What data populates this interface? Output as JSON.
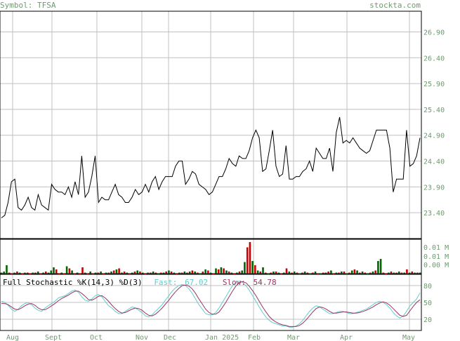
{
  "header": {
    "symbol": "Symbol: TFSA",
    "site": "stockta.com"
  },
  "colors": {
    "price_line": "#000000",
    "grid": "#c0c0c0",
    "vol_up": "#006600",
    "vol_down": "#cc0000",
    "fast": "#66cccc",
    "slow": "#993366",
    "text": "#6f9a6f"
  },
  "stochastic": {
    "label": "Full Stochastic %K(14,3) %D(3)",
    "fast_label": "Fast:",
    "fast_value": "67.02",
    "slow_label": "Slow:",
    "slow_value": "54.78"
  },
  "chart_data": [
    {
      "type": "line",
      "title": "Price",
      "yticks": [
        "26.90",
        "26.40",
        "25.90",
        "25.40",
        "24.90",
        "24.40",
        "23.90",
        "23.40"
      ],
      "ylim": [
        22.9,
        27.3
      ],
      "xticks": [
        "Aug",
        "Sept",
        "Oct",
        "Nov",
        "Dec",
        "Jan 2025",
        "Feb",
        "Mar",
        "Apr",
        "May"
      ],
      "values": [
        23.3,
        23.35,
        23.6,
        24.0,
        24.05,
        23.5,
        23.45,
        23.55,
        23.7,
        23.5,
        23.45,
        23.75,
        23.55,
        23.5,
        23.45,
        23.95,
        23.85,
        23.8,
        23.8,
        23.75,
        23.9,
        23.7,
        24.0,
        23.75,
        24.5,
        23.7,
        23.8,
        24.1,
        24.5,
        23.6,
        23.7,
        23.65,
        23.65,
        23.8,
        23.95,
        23.75,
        23.7,
        23.6,
        23.6,
        23.7,
        23.85,
        23.75,
        23.8,
        23.95,
        23.8,
        24.0,
        24.1,
        23.85,
        24.0,
        24.1,
        24.1,
        24.1,
        24.3,
        24.4,
        24.4,
        23.95,
        24.05,
        24.2,
        24.15,
        23.95,
        23.9,
        23.85,
        23.75,
        23.8,
        23.95,
        24.1,
        24.1,
        24.25,
        24.45,
        24.35,
        24.3,
        24.5,
        24.45,
        24.45,
        24.6,
        24.85,
        25.0,
        24.85,
        24.2,
        24.25,
        24.6,
        25.0,
        24.3,
        24.1,
        24.15,
        24.7,
        24.05,
        24.05,
        24.1,
        24.1,
        24.2,
        24.25,
        24.4,
        24.2,
        24.65,
        24.55,
        24.45,
        24.45,
        24.65,
        24.2,
        24.95,
        25.25,
        24.75,
        24.8,
        24.75,
        24.85,
        24.75,
        24.65,
        24.6,
        24.55,
        24.6,
        24.8,
        25.0,
        25.0,
        25.0,
        25.0,
        24.65,
        23.8,
        24.05,
        24.05,
        24.05,
        25.0,
        24.3,
        24.35,
        24.5,
        24.85
      ]
    },
    {
      "type": "bar",
      "title": "Volume",
      "yticks": [
        "0.01 M",
        "0.01 M",
        "0.00 M"
      ],
      "values": [
        1,
        2,
        8,
        1,
        0,
        1,
        2,
        1,
        0,
        1,
        1,
        0,
        1,
        1,
        2,
        0,
        1,
        2,
        1,
        3,
        6,
        4,
        0,
        1,
        0,
        7,
        5,
        3,
        0,
        1,
        0,
        6,
        1,
        0,
        2,
        0,
        1,
        1,
        2,
        0,
        1,
        1,
        2,
        3,
        4,
        5,
        1,
        2,
        1,
        0,
        1,
        2,
        3,
        2,
        1,
        0,
        1,
        1,
        2,
        1,
        0,
        1,
        1,
        2,
        3,
        2,
        1,
        0,
        1,
        1,
        2,
        1,
        2,
        3,
        2,
        1,
        0,
        2,
        4,
        3,
        1,
        0,
        5,
        4,
        6,
        5,
        3,
        2,
        1,
        0,
        1,
        2,
        3,
        11,
        25,
        30,
        12,
        8,
        3,
        2,
        6,
        1,
        0,
        1,
        2,
        2,
        1,
        0,
        1,
        5,
        2,
        1,
        2,
        1,
        0,
        1,
        2,
        1,
        0,
        1,
        2,
        0,
        0,
        1,
        1,
        2,
        3,
        0,
        1,
        1,
        2,
        2,
        0,
        1,
        3,
        4,
        3,
        1,
        2,
        1,
        0,
        1,
        2,
        3,
        12,
        14,
        1,
        0,
        1,
        2,
        1,
        1,
        2,
        1,
        1,
        4,
        1,
        2,
        1,
        1,
        1
      ],
      "up": [
        1,
        1,
        1,
        0,
        0,
        1,
        0,
        1,
        0,
        1,
        0,
        0,
        1,
        0,
        1,
        0,
        1,
        0,
        1,
        1,
        1,
        0,
        0,
        1,
        0,
        1,
        0,
        1,
        0,
        1,
        0,
        0,
        1,
        0,
        1,
        0,
        1,
        0,
        1,
        0,
        1,
        0,
        1,
        0,
        1,
        0,
        1,
        0,
        1,
        0,
        1,
        0,
        1,
        0,
        1,
        0,
        1,
        0,
        1,
        0,
        1,
        0,
        1,
        0,
        1,
        0,
        1,
        0,
        1,
        0,
        1,
        0,
        1,
        0,
        1,
        0,
        1,
        0,
        1,
        0,
        1,
        0,
        1,
        0,
        1,
        0,
        1,
        0,
        1,
        0,
        1,
        0,
        1,
        1,
        0,
        0,
        1,
        0,
        1,
        0,
        1,
        0,
        1,
        0,
        1,
        0,
        1,
        0,
        1,
        0,
        1,
        0,
        1,
        0,
        1,
        0,
        1,
        0,
        1,
        0,
        1,
        0,
        1,
        0,
        1,
        0,
        1,
        0,
        1,
        0,
        1,
        0,
        1,
        0,
        1,
        0,
        1,
        0,
        1,
        0,
        1,
        0,
        1,
        0,
        1,
        1,
        0,
        0,
        1,
        0,
        1,
        0,
        1,
        0,
        1,
        0,
        1,
        0,
        1,
        0,
        1
      ]
    },
    {
      "type": "line",
      "title": "Full Stochastic",
      "yticks": [
        "80",
        "50",
        "20"
      ],
      "ylim": [
        0,
        100
      ],
      "series": [
        {
          "name": "Fast",
          "values": [
            52,
            50,
            45,
            38,
            34,
            38,
            44,
            48,
            50,
            46,
            40,
            36,
            34,
            40,
            44,
            48,
            52,
            58,
            60,
            62,
            66,
            70,
            72,
            68,
            60,
            54,
            52,
            56,
            62,
            64,
            60,
            52,
            44,
            40,
            34,
            30,
            30,
            34,
            38,
            42,
            40,
            36,
            32,
            26,
            24,
            28,
            34,
            40,
            46,
            54,
            62,
            70,
            76,
            80,
            82,
            80,
            74,
            66,
            56,
            46,
            38,
            30,
            28,
            28,
            32,
            40,
            50,
            60,
            70,
            80,
            86,
            88,
            86,
            80,
            72,
            62,
            52,
            42,
            32,
            24,
            18,
            14,
            12,
            10,
            8,
            8,
            6,
            6,
            8,
            12,
            18,
            26,
            34,
            40,
            44,
            42,
            38,
            34,
            30,
            30,
            32,
            34,
            34,
            32,
            30,
            30,
            32,
            34,
            36,
            38,
            42,
            46,
            50,
            52,
            50,
            46,
            40,
            32,
            26,
            22,
            26,
            34,
            44,
            50,
            56,
            67
          ]
        },
        {
          "name": "Slow",
          "values": [
            48,
            48,
            46,
            42,
            38,
            37,
            40,
            44,
            47,
            48,
            45,
            40,
            37,
            37,
            40,
            44,
            48,
            53,
            57,
            60,
            63,
            67,
            70,
            70,
            66,
            61,
            55,
            54,
            57,
            61,
            62,
            58,
            52,
            45,
            39,
            34,
            31,
            32,
            35,
            38,
            40,
            39,
            36,
            31,
            27,
            26,
            29,
            34,
            40,
            47,
            54,
            62,
            69,
            75,
            80,
            81,
            79,
            74,
            66,
            56,
            47,
            38,
            32,
            29,
            29,
            33,
            41,
            50,
            60,
            70,
            79,
            85,
            87,
            85,
            79,
            71,
            62,
            52,
            42,
            33,
            25,
            19,
            15,
            12,
            10,
            9,
            7,
            7,
            7,
            9,
            13,
            19,
            26,
            33,
            39,
            42,
            41,
            38,
            34,
            31,
            31,
            32,
            33,
            33,
            32,
            31,
            31,
            32,
            34,
            36,
            39,
            42,
            46,
            49,
            51,
            49,
            45,
            39,
            33,
            27,
            25,
            27,
            35,
            43,
            50,
            54.78
          ]
        }
      ]
    }
  ]
}
